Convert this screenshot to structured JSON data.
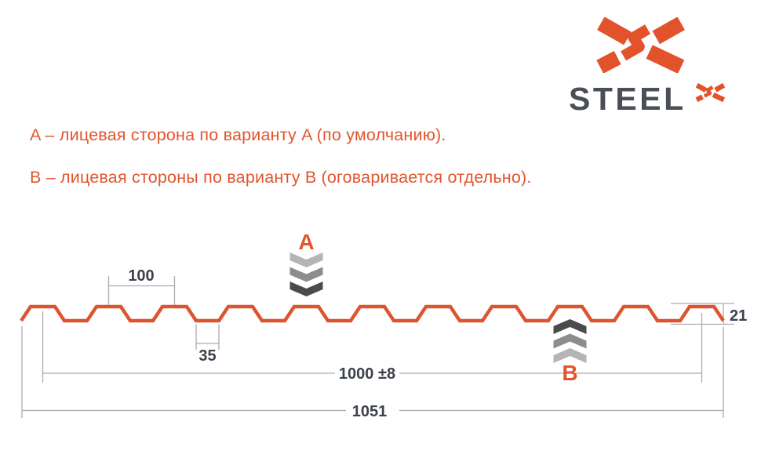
{
  "brand": {
    "name": "STEEL",
    "mark": "steelx-x-mark"
  },
  "legend": {
    "line_a": "A – лицевая сторона по варианту A (по умолчанию).",
    "line_b": "B – лицевая стороны по варианту B (оговаривается отдельно)."
  },
  "diagram": {
    "marker_a": "A",
    "marker_b": "B",
    "dims": {
      "pitch": "100",
      "valley_width": "35",
      "working_width": "1000 ±8",
      "overall_width": "1051",
      "height": "21"
    }
  },
  "colors": {
    "accent_orange": "#E2552E",
    "profile_stroke": "#DC5430",
    "brand_text": "#4A4E57",
    "dim_text": "#3C414B",
    "dim_line": "#ACACAC",
    "chevron_light": "#B4B5B7",
    "chevron_mid": "#8C8D8F",
    "chevron_dark": "#4B4B4D"
  }
}
